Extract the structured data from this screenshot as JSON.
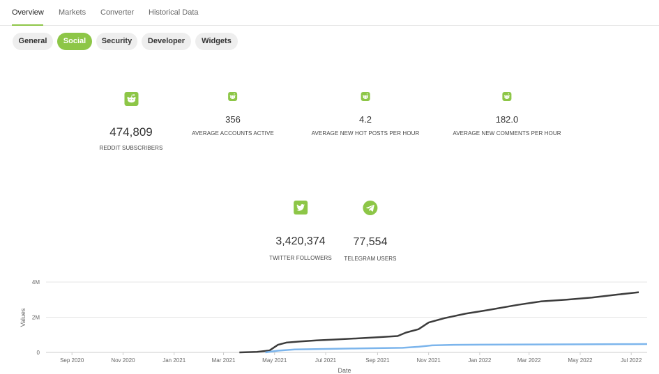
{
  "tabs": [
    {
      "label": "Overview",
      "active": true
    },
    {
      "label": "Markets",
      "active": false
    },
    {
      "label": "Converter",
      "active": false
    },
    {
      "label": "Historical Data",
      "active": false
    }
  ],
  "subtabs": [
    {
      "label": "General",
      "active": false
    },
    {
      "label": "Social",
      "active": true
    },
    {
      "label": "Security",
      "active": false
    },
    {
      "label": "Developer",
      "active": false
    },
    {
      "label": "Widgets",
      "active": false
    }
  ],
  "reddit": {
    "icon": "reddit-icon",
    "subscribers": {
      "value": "474,809",
      "label": "REDDIT SUBSCRIBERS"
    },
    "accounts_active": {
      "value": "356",
      "label": "AVERAGE ACCOUNTS ACTIVE"
    },
    "hot_posts": {
      "value": "4.2",
      "label": "AVERAGE NEW HOT POSTS PER HOUR"
    },
    "comments": {
      "value": "182.0",
      "label": "AVERAGE NEW COMMENTS PER HOUR"
    }
  },
  "twitter": {
    "icon": "twitter-icon",
    "value": "3,420,374",
    "label": "TWITTER FOLLOWERS"
  },
  "telegram": {
    "icon": "telegram-icon",
    "value": "77,554",
    "label": "TELEGRAM USERS"
  },
  "colors": {
    "accent": "#8dc647",
    "twitter_line": "#3c3c3c",
    "telegram_line": "#7cb5ec"
  },
  "chart_data": {
    "type": "line",
    "ylabel": "Values",
    "xlabel": "Date",
    "ylim": [
      0,
      4000000
    ],
    "yticks": [
      {
        "value": 0,
        "label": "0"
      },
      {
        "value": 2000000,
        "label": "2M"
      },
      {
        "value": 4000000,
        "label": "4M"
      }
    ],
    "xlim": [
      "2020-08-01",
      "2022-07-20"
    ],
    "xticks": [
      {
        "date": "2020-09-01",
        "label": "Sep 2020"
      },
      {
        "date": "2020-11-01",
        "label": "Nov 2020"
      },
      {
        "date": "2021-01-01",
        "label": "Jan 2021"
      },
      {
        "date": "2021-03-01",
        "label": "Mar 2021"
      },
      {
        "date": "2021-05-01",
        "label": "May 2021"
      },
      {
        "date": "2021-07-01",
        "label": "Jul 2021"
      },
      {
        "date": "2021-09-01",
        "label": "Sep 2021"
      },
      {
        "date": "2021-11-01",
        "label": "Nov 2021"
      },
      {
        "date": "2022-01-01",
        "label": "Jan 2022"
      },
      {
        "date": "2022-03-01",
        "label": "Mar 2022"
      },
      {
        "date": "2022-05-01",
        "label": "May 2022"
      },
      {
        "date": "2022-07-01",
        "label": "Jul 2022"
      }
    ],
    "grid": true,
    "series": [
      {
        "color": "#3c3c3c",
        "points": [
          [
            "2021-03-20",
            0
          ],
          [
            "2021-04-10",
            30000
          ],
          [
            "2021-04-25",
            110000
          ],
          [
            "2021-05-05",
            430000
          ],
          [
            "2021-05-15",
            560000
          ],
          [
            "2021-06-01",
            620000
          ],
          [
            "2021-06-20",
            680000
          ],
          [
            "2021-07-10",
            730000
          ],
          [
            "2021-08-01",
            780000
          ],
          [
            "2021-09-01",
            860000
          ],
          [
            "2021-09-25",
            930000
          ],
          [
            "2021-10-05",
            1130000
          ],
          [
            "2021-10-20",
            1320000
          ],
          [
            "2021-11-01",
            1700000
          ],
          [
            "2021-11-20",
            1950000
          ],
          [
            "2021-12-15",
            2200000
          ],
          [
            "2022-01-10",
            2400000
          ],
          [
            "2022-02-15",
            2700000
          ],
          [
            "2022-03-15",
            2900000
          ],
          [
            "2022-04-15",
            3000000
          ],
          [
            "2022-05-15",
            3120000
          ],
          [
            "2022-06-15",
            3290000
          ],
          [
            "2022-07-10",
            3420000
          ]
        ]
      },
      {
        "color": "#7cb5ec",
        "points": [
          [
            "2021-04-20",
            0
          ],
          [
            "2021-05-05",
            100000
          ],
          [
            "2021-05-25",
            170000
          ],
          [
            "2021-07-01",
            200000
          ],
          [
            "2021-08-01",
            220000
          ],
          [
            "2021-09-01",
            240000
          ],
          [
            "2021-10-01",
            260000
          ],
          [
            "2021-10-20",
            320000
          ],
          [
            "2021-11-05",
            400000
          ],
          [
            "2021-12-01",
            430000
          ],
          [
            "2022-01-01",
            440000
          ],
          [
            "2022-03-01",
            450000
          ],
          [
            "2022-05-01",
            460000
          ],
          [
            "2022-07-01",
            470000
          ],
          [
            "2022-07-20",
            475000
          ]
        ]
      }
    ]
  }
}
